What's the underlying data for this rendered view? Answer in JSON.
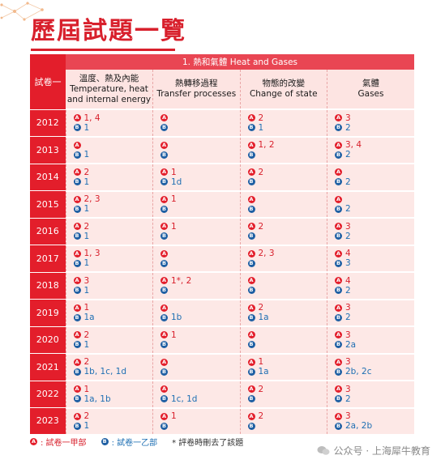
{
  "page_title": "歷屆試題一覽",
  "section_header": "1. 熱和氣體 Heat and Gases",
  "paper_header": "試卷一",
  "columns": [
    {
      "zh": "溫度、熱及內能",
      "en": "Temperature, heat and internal energy"
    },
    {
      "zh": "熱轉移過程",
      "en": "Transfer processes"
    },
    {
      "zh": "物態的改變",
      "en": "Change of state"
    },
    {
      "zh": "氣體",
      "en": "Gases"
    }
  ],
  "badge_a": "A",
  "badge_b": "B",
  "rows": [
    {
      "year": "2012",
      "cells": [
        {
          "a": "1, 4",
          "b": "1"
        },
        {
          "a": "",
          "b": ""
        },
        {
          "a": "2",
          "b": "1"
        },
        {
          "a": "3",
          "b": "2"
        }
      ]
    },
    {
      "year": "2013",
      "cells": [
        {
          "a": "",
          "b": "1"
        },
        {
          "a": "",
          "b": ""
        },
        {
          "a": "1, 2",
          "b": ""
        },
        {
          "a": "3, 4",
          "b": "2"
        }
      ]
    },
    {
      "year": "2014",
      "cells": [
        {
          "a": "2",
          "b": "1"
        },
        {
          "a": "1",
          "b": "1d"
        },
        {
          "a": "2",
          "b": ""
        },
        {
          "a": "",
          "b": "2"
        }
      ]
    },
    {
      "year": "2015",
      "cells": [
        {
          "a": "2, 3",
          "b": "1"
        },
        {
          "a": "1",
          "b": ""
        },
        {
          "a": "",
          "b": ""
        },
        {
          "a": "",
          "b": "2"
        }
      ]
    },
    {
      "year": "2016",
      "cells": [
        {
          "a": "2",
          "b": "1"
        },
        {
          "a": "1",
          "b": ""
        },
        {
          "a": "2",
          "b": ""
        },
        {
          "a": "3",
          "b": "2"
        }
      ]
    },
    {
      "year": "2017",
      "cells": [
        {
          "a": "1, 3",
          "b": "1"
        },
        {
          "a": "",
          "b": ""
        },
        {
          "a": "2, 3",
          "b": ""
        },
        {
          "a": "4",
          "b": "3"
        }
      ]
    },
    {
      "year": "2018",
      "cells": [
        {
          "a": "3",
          "b": "1"
        },
        {
          "a": "1*, 2",
          "b": ""
        },
        {
          "a": "",
          "b": ""
        },
        {
          "a": "4",
          "b": "2"
        }
      ]
    },
    {
      "year": "2019",
      "cells": [
        {
          "a": "1",
          "b": "1a"
        },
        {
          "a": "",
          "b": "1b"
        },
        {
          "a": "2",
          "b": "1a"
        },
        {
          "a": "3",
          "b": "2"
        }
      ]
    },
    {
      "year": "2020",
      "cells": [
        {
          "a": "2",
          "b": "1"
        },
        {
          "a": "1",
          "b": ""
        },
        {
          "a": "",
          "b": ""
        },
        {
          "a": "3",
          "b": "2a"
        }
      ]
    },
    {
      "year": "2021",
      "cells": [
        {
          "a": "2",
          "b": "1b, 1c, 1d"
        },
        {
          "a": "",
          "b": ""
        },
        {
          "a": "1",
          "b": "1a"
        },
        {
          "a": "3",
          "b": "2b, 2c"
        }
      ]
    },
    {
      "year": "2022",
      "cells": [
        {
          "a": "1",
          "b": "1a, 1b"
        },
        {
          "a": "",
          "b": "1c, 1d"
        },
        {
          "a": "2",
          "b": ""
        },
        {
          "a": "3",
          "b": "2"
        }
      ]
    },
    {
      "year": "2023",
      "cells": [
        {
          "a": "2",
          "b": "1"
        },
        {
          "a": "1",
          "b": ""
        },
        {
          "a": "2",
          "b": ""
        },
        {
          "a": "3",
          "b": "2a, 2b"
        }
      ]
    }
  ],
  "legend": {
    "a_label": ": 試卷一甲部",
    "b_label": ": 試卷一乙部",
    "note": "* 評卷時刪去了該題"
  },
  "watermark": "公众号 · 上海犀牛教育",
  "colors": {
    "red": "#e31e2b",
    "blue": "#1e5fa3",
    "pink": "#fde8e6"
  }
}
